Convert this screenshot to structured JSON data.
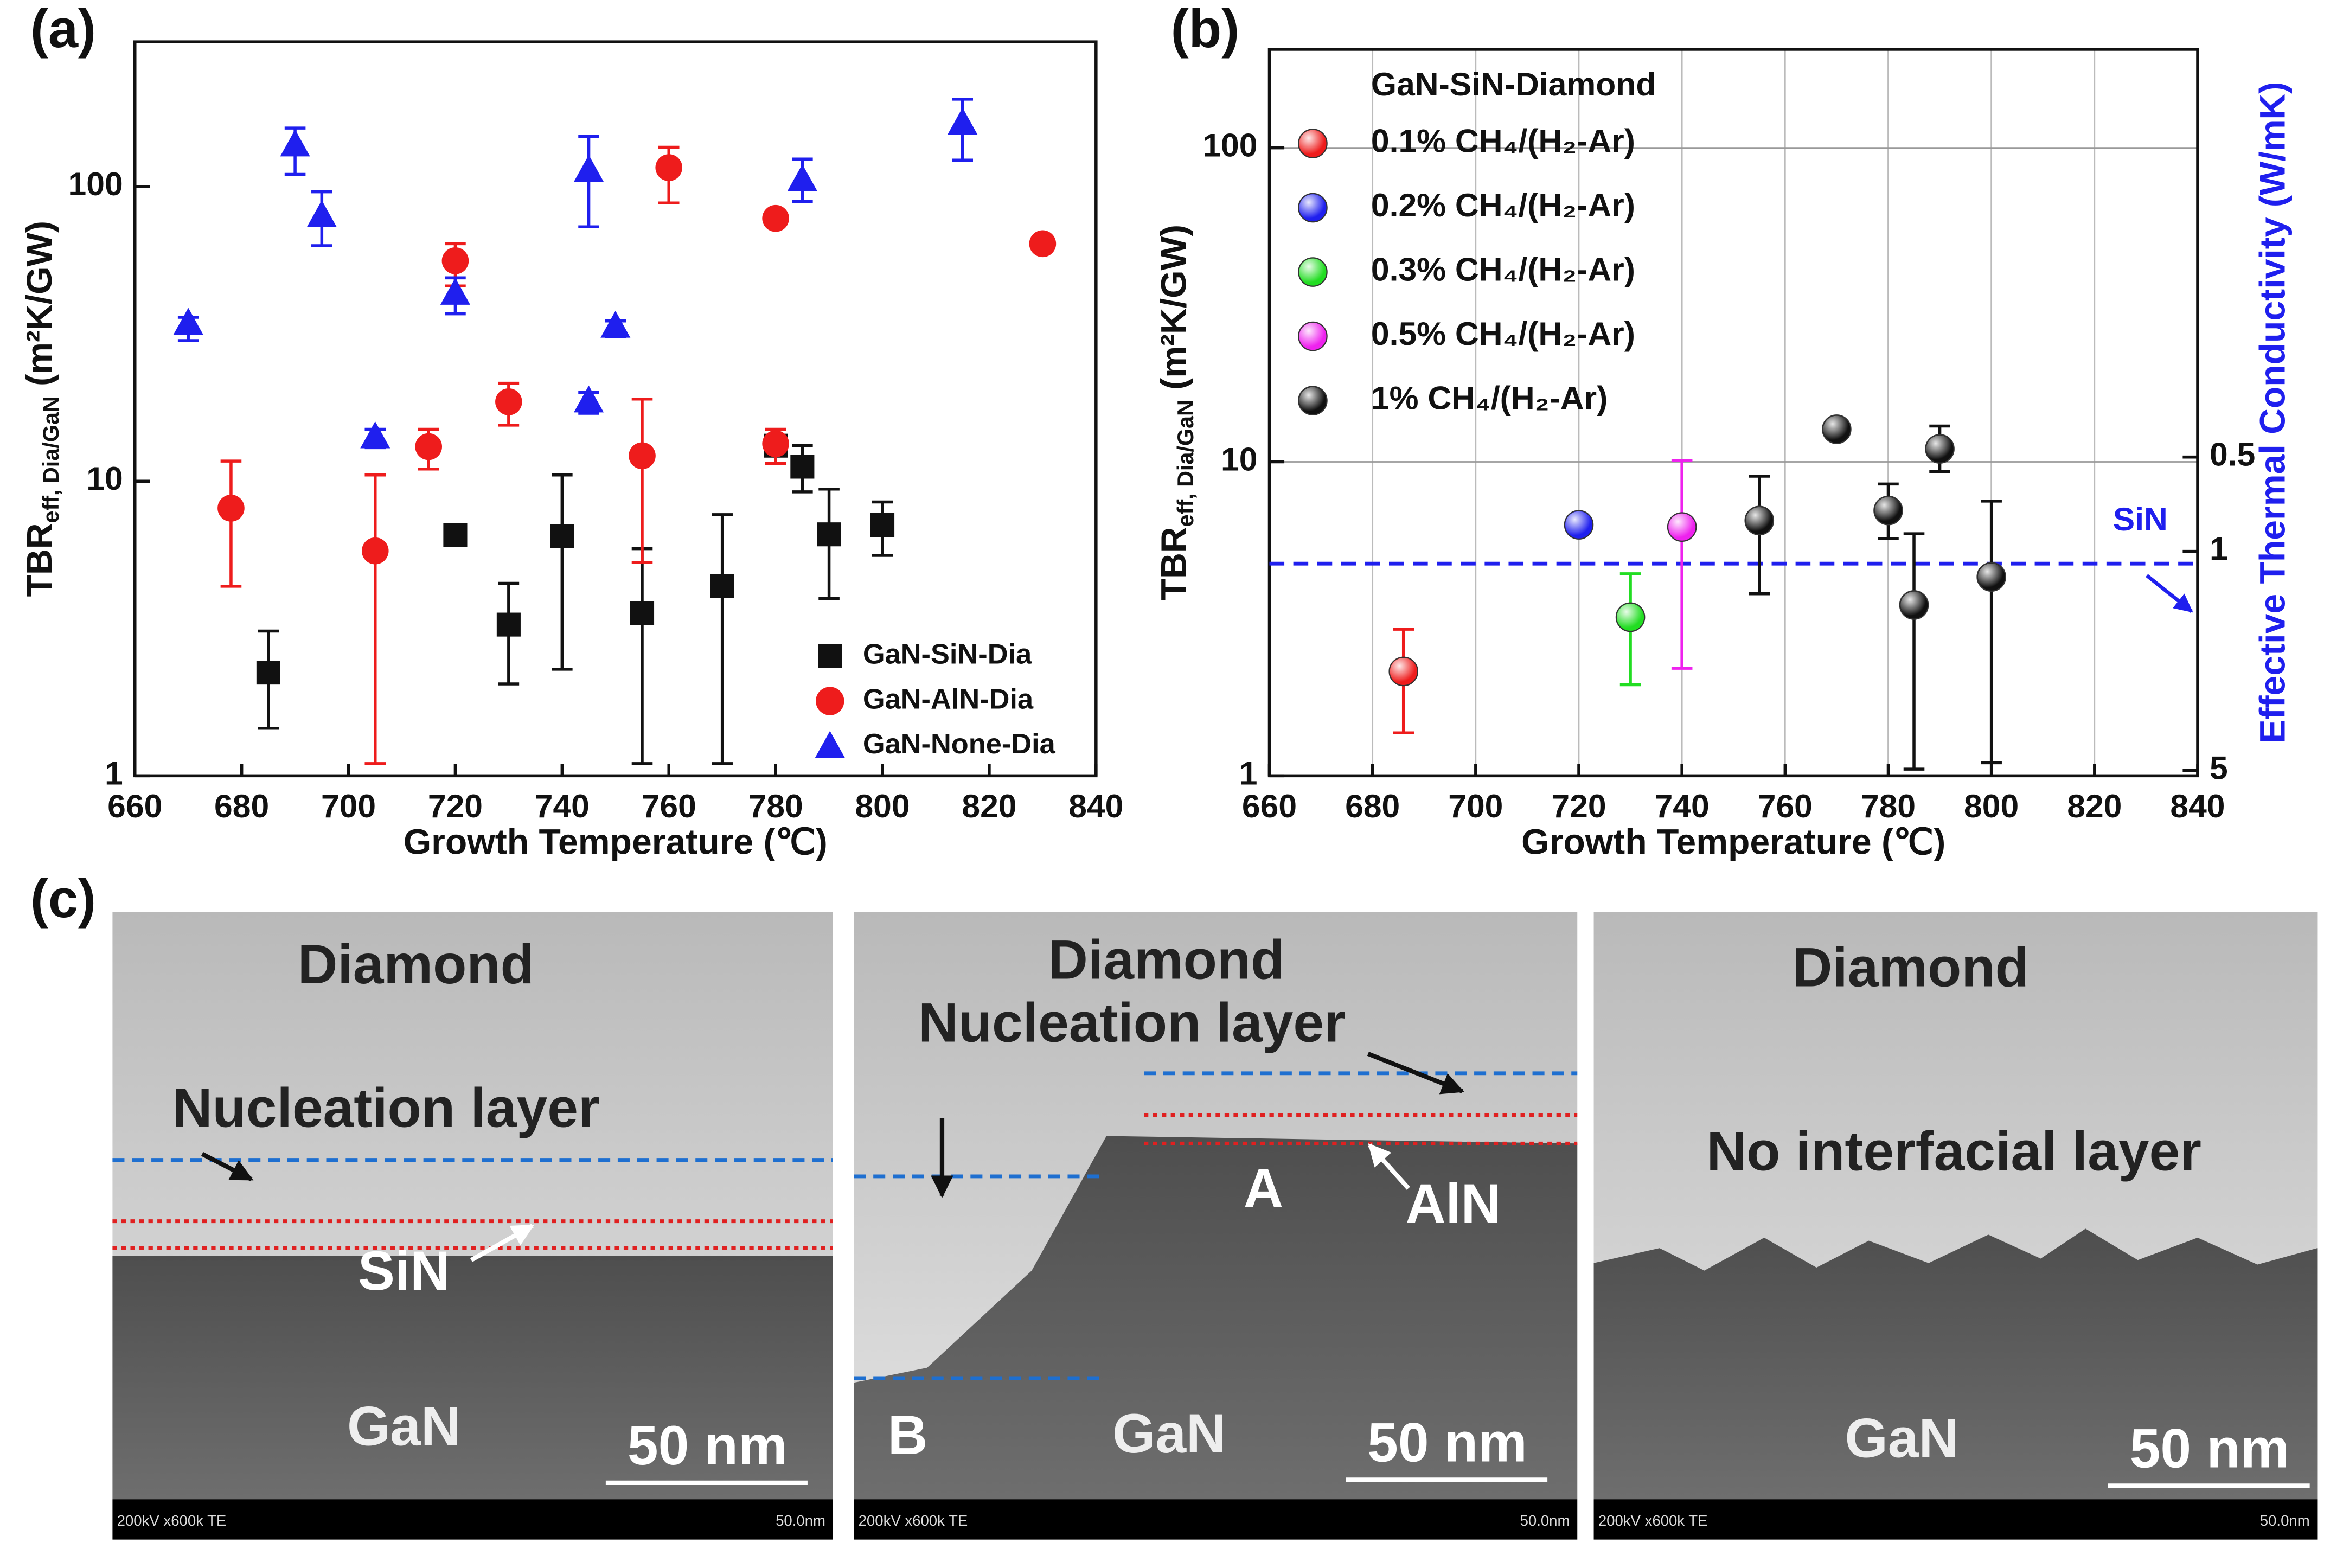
{
  "chart_data": [
    {
      "panel_label": "(a)",
      "type": "scatter",
      "x_label": "Growth Temperature (℃)",
      "y_label": {
        "main": "TBR",
        "sub": "eff, Dia/GaN",
        "rest": " (m²K/GW)"
      },
      "xlim": [
        660,
        840
      ],
      "xticks": [
        660,
        680,
        700,
        720,
        740,
        760,
        780,
        800,
        820,
        840
      ],
      "ylim": [
        1,
        310
      ],
      "yscale": "log",
      "yticks": [
        1,
        10,
        100
      ],
      "legend": "lower right",
      "grid": false,
      "series": [
        {
          "name": "GaN-SiN-Dia",
          "color": "#111111",
          "marker": "square",
          "x": [
            685,
            720,
            730,
            740,
            755,
            770,
            780,
            785,
            790,
            800
          ],
          "values": [
            2.24,
            6.56,
            3.26,
            6.5,
            3.57,
            4.41,
            13.2,
            11.2,
            6.6,
            7.1
          ],
          "err_low": [
            1.45,
            null,
            2.05,
            2.3,
            1.1,
            1.1,
            null,
            9.2,
            4.0,
            5.6
          ],
          "err_high": [
            3.1,
            null,
            4.5,
            10.5,
            5.9,
            7.7,
            null,
            13.2,
            9.4,
            8.5
          ]
        },
        {
          "name": "GaN-AlN-Dia",
          "color": "#ee1c1c",
          "marker": "circle",
          "x": [
            678,
            705,
            715,
            720,
            730,
            755,
            760,
            780,
            780,
            830
          ],
          "values": [
            8.1,
            5.8,
            13.1,
            56,
            18.6,
            12.2,
            116,
            78,
            13.4,
            64
          ],
          "err_low": [
            4.4,
            1.1,
            11,
            46,
            15.5,
            5.3,
            88,
            null,
            11.5,
            null
          ],
          "err_high": [
            11.7,
            10.5,
            15,
            64,
            21.5,
            19,
            136,
            null,
            15,
            null
          ]
        },
        {
          "name": "GaN-None-Dia",
          "color": "#1f1fee",
          "marker": "triangle",
          "x": [
            670,
            690,
            695,
            705,
            720,
            745,
            745,
            750,
            785,
            815
          ],
          "values": [
            34.5,
            139,
            80,
            14.2,
            43.6,
            18.8,
            114,
            33.7,
            106,
            165
          ],
          "err_low": [
            30,
            110,
            63,
            13,
            37,
            17,
            73,
            31,
            89,
            123
          ],
          "err_high": [
            36,
            158,
            96,
            15,
            49,
            20,
            148,
            35,
            124,
            198
          ]
        }
      ]
    },
    {
      "panel_label": "(b)",
      "type": "scatter",
      "x_label": "Growth Temperature (℃)",
      "y_label": {
        "main": "TBR",
        "sub": "eff, Dia/GaN",
        "rest": " (m²K/GW)"
      },
      "y2_label": "Effective Thermal Conductivity (W/mK)",
      "xlim": [
        660,
        840
      ],
      "xticks": [
        660,
        680,
        700,
        720,
        740,
        760,
        780,
        800,
        820,
        840
      ],
      "ylim": [
        1,
        206
      ],
      "yscale": "log",
      "yticks": [
        1,
        10,
        100
      ],
      "y2lim": [
        5.2,
        0.025
      ],
      "y2scale": "log",
      "y2ticks": [
        0.5,
        1,
        5
      ],
      "y2color": "#1f1fee",
      "grid": true,
      "legend": "upper left",
      "legend_title": "GaN-SiN-Diamond",
      "reference_line": {
        "label": "SiN",
        "value": 4.74,
        "color": "#1f1fee"
      },
      "series": [
        {
          "name": "0.1% CH₄/(H₂-Ar)",
          "color": "#ee1c1c",
          "marker": "sphere",
          "x": [
            686
          ],
          "values": [
            2.15
          ],
          "err_low": [
            1.37
          ],
          "err_high": [
            2.93
          ]
        },
        {
          "name": "0.2% CH₄/(H₂-Ar)",
          "color": "#1f1fee",
          "marker": "sphere",
          "x": [
            720
          ],
          "values": [
            6.3
          ],
          "err_low": [
            null
          ],
          "err_high": [
            null
          ]
        },
        {
          "name": "0.3% CH₄/(H₂-Ar)",
          "color": "#22dd22",
          "marker": "sphere",
          "x": [
            730
          ],
          "values": [
            3.2
          ],
          "err_low": [
            1.95
          ],
          "err_high": [
            4.4
          ]
        },
        {
          "name": "0.5% CH₄/(H₂-Ar)",
          "color": "#ee22ee",
          "marker": "sphere",
          "x": [
            740
          ],
          "values": [
            6.2
          ],
          "err_low": [
            2.2
          ],
          "err_high": [
            10.1
          ]
        },
        {
          "name": "1% CH₄/(H₂-Ar)",
          "color": "#111111",
          "marker": "sphere",
          "x": [
            755,
            770,
            780,
            785,
            790,
            800
          ],
          "values": [
            6.5,
            12.7,
            7.0,
            3.5,
            11,
            4.3
          ],
          "err_low": [
            3.8,
            null,
            5.7,
            1.05,
            9.3,
            1.1
          ],
          "err_high": [
            9.0,
            null,
            8.5,
            5.9,
            13,
            7.5
          ]
        }
      ]
    }
  ],
  "panel_c": {
    "panel_label": "(c)",
    "images": [
      {
        "labels": [
          "Diamond",
          "Nucleation layer",
          "SiN",
          "GaN"
        ],
        "scale_bar": "50 nm",
        "footer_left": "200kV x600k TE",
        "footer_right": "50.0nm"
      },
      {
        "labels": [
          "Diamond",
          "Nucleation layer",
          "A",
          "AlN",
          "B",
          "GaN"
        ],
        "scale_bar": "50 nm",
        "footer_left": "200kV x600k TE",
        "footer_right": "50.0nm"
      },
      {
        "labels": [
          "Diamond",
          "No interfacial layer",
          "GaN"
        ],
        "scale_bar": "50 nm",
        "footer_left": "200kV x600k TE",
        "footer_right": "50.0nm"
      }
    ]
  }
}
